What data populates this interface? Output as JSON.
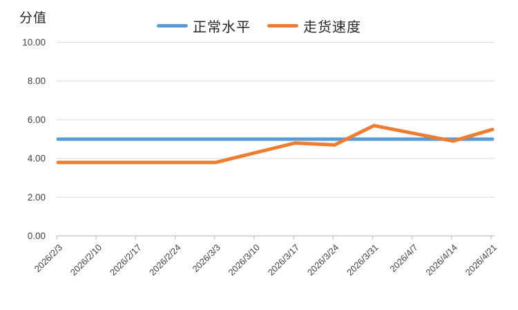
{
  "chart_data": {
    "type": "line",
    "title": "",
    "ylabel": "分值",
    "xlabel": "",
    "categories": [
      "2026/2/3",
      "2026/2/10",
      "2026/2/17",
      "2026/2/24",
      "2026/3/3",
      "2026/3/10",
      "2026/3/17",
      "2026/3/24",
      "2026/3/31",
      "2026/4/7",
      "2026/4/14",
      "2026/4/21"
    ],
    "series": [
      {
        "id": "normal-level",
        "name": "正常水平",
        "color": "#5B9BD5",
        "values": [
          5.0,
          5.0,
          5.0,
          5.0,
          5.0,
          5.0,
          5.0,
          5.0,
          5.0,
          5.0,
          5.0,
          5.0
        ]
      },
      {
        "id": "shipping-speed",
        "name": "走货速度",
        "color": "#ED7D31",
        "values": [
          3.8,
          3.8,
          3.8,
          3.8,
          3.8,
          4.3,
          4.8,
          4.7,
          5.7,
          5.3,
          4.9,
          5.5
        ]
      }
    ],
    "ylim": [
      0,
      10
    ],
    "yticks": [
      0,
      2,
      4,
      6,
      8,
      10
    ],
    "ytick_labels": [
      "0.00",
      "2.00",
      "4.00",
      "6.00",
      "8.00",
      "10.00"
    ],
    "legend_position": "top",
    "grid": "horizontal",
    "gridline_color": "#D9D9D9",
    "axis_color": "#BFBFBF",
    "tick_label_color": "#404040",
    "text_color": "#262626"
  }
}
